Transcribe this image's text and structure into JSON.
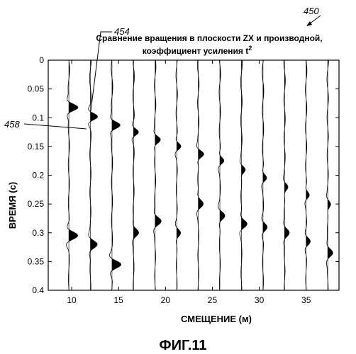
{
  "figure": {
    "ref_main": "450",
    "ref_a": "454",
    "ref_b": "458",
    "caption": "ФИГ.11"
  },
  "chart_data": {
    "type": "line",
    "title_line1": "Сравнение вращения в плоскости ZX и производной,",
    "title_line2": "коэффициент усиления t",
    "title_sup": "2",
    "xlabel": "СМЕЩЕНИЕ (м)",
    "ylabel": "ВРЕМЯ (с)",
    "xlim": [
      7.5,
      38.5
    ],
    "ylim": [
      0,
      0.4
    ],
    "y_inverted": true,
    "xticks": [
      10,
      15,
      20,
      25,
      30,
      35
    ],
    "yticks": [
      0,
      0.05,
      0.1,
      0.15,
      0.2,
      0.25,
      0.3,
      0.35,
      0.4
    ],
    "ytick_labels": [
      "0",
      "0.05",
      "0.1",
      "0.15",
      "0.2",
      "0.25",
      "0.3",
      "0.35",
      "0.4"
    ],
    "xtick_labels": [
      "10",
      "15",
      "20",
      "25",
      "30",
      "35"
    ],
    "wiggle_style": "variable-area (positive lobes filled black)",
    "trace_offsets": [
      9.7,
      12.0,
      14.3,
      16.6,
      18.9,
      21.2,
      23.5,
      25.8,
      28.1,
      30.4,
      32.7,
      35.0,
      37.3
    ],
    "series": [
      {
        "name": "ZX rotation",
        "events": [
          {
            "t": 0.082,
            "amp": 0.9,
            "width": 0.013
          },
          {
            "t": 0.098,
            "amp": 0.85,
            "width": 0.013
          },
          {
            "t": 0.113,
            "amp": 0.8,
            "width": 0.013
          },
          {
            "t": 0.125,
            "amp": 0.6,
            "width": 0.013
          },
          {
            "t": 0.138,
            "amp": 0.5,
            "width": 0.013
          },
          {
            "t": 0.15,
            "amp": 0.5,
            "width": 0.013
          },
          {
            "t": 0.163,
            "amp": 0.55,
            "width": 0.013
          },
          {
            "t": 0.175,
            "amp": 0.45,
            "width": 0.013
          },
          {
            "t": 0.19,
            "amp": 0.4,
            "width": 0.013
          },
          {
            "t": 0.205,
            "amp": 0.4,
            "width": 0.013
          },
          {
            "t": 0.22,
            "amp": 0.35,
            "width": 0.013
          },
          {
            "t": 0.235,
            "amp": 0.35,
            "width": 0.013
          },
          {
            "t": 0.25,
            "amp": 0.3,
            "width": 0.013
          }
        ]
      },
      {
        "name": "derivative",
        "events": [
          {
            "t": 0.305,
            "amp": 1.0,
            "width": 0.015
          },
          {
            "t": 0.32,
            "amp": 0.7,
            "width": 0.015
          },
          {
            "t": 0.355,
            "amp": 1.0,
            "width": 0.015
          },
          {
            "t": 0.3,
            "amp": 0.5,
            "width": 0.015
          },
          {
            "t": 0.28,
            "amp": 0.6,
            "width": 0.015
          },
          {
            "t": 0.3,
            "amp": 0.45,
            "width": 0.015
          },
          {
            "t": 0.25,
            "amp": 0.5,
            "width": 0.015
          },
          {
            "t": 0.27,
            "amp": 0.55,
            "width": 0.015
          },
          {
            "t": 0.285,
            "amp": 0.6,
            "width": 0.015
          },
          {
            "t": 0.29,
            "amp": 0.5,
            "width": 0.015
          },
          {
            "t": 0.3,
            "amp": 0.45,
            "width": 0.015
          },
          {
            "t": 0.315,
            "amp": 0.5,
            "width": 0.015
          },
          {
            "t": 0.335,
            "amp": 0.5,
            "width": 0.015
          }
        ]
      }
    ]
  }
}
